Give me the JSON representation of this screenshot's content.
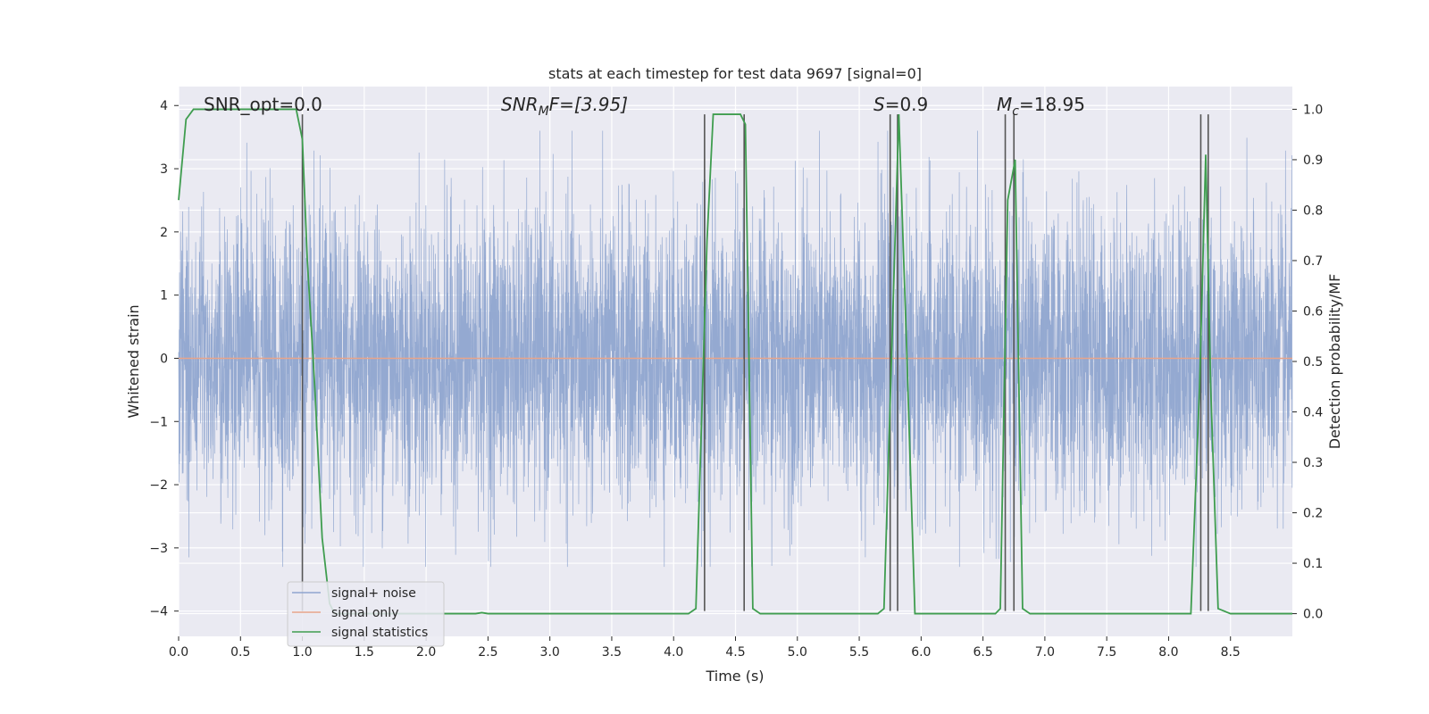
{
  "chart_data": {
    "type": "line",
    "title": "stats at each timestep for test data 9697 [signal=0]",
    "xlabel": "Time (s)",
    "ylabel_left": "Whitened strain",
    "ylabel_right": "Detection probability/MF",
    "xlim": [
      0,
      9.0
    ],
    "ylim_left": [
      -4.4,
      4.3
    ],
    "ylim_right": [
      -0.045,
      1.045
    ],
    "x_ticks": [
      "0.0",
      "0.5",
      "1.0",
      "1.5",
      "2.0",
      "2.5",
      "3.0",
      "3.5",
      "4.0",
      "4.5",
      "5.0",
      "5.5",
      "6.0",
      "6.5",
      "7.0",
      "7.5",
      "8.0",
      "8.5"
    ],
    "y_ticks_left": [
      "−4",
      "−3",
      "−2",
      "−1",
      "0",
      "1",
      "2",
      "3",
      "4"
    ],
    "y_ticks_right": [
      "0.0",
      "0.1",
      "0.2",
      "0.3",
      "0.4",
      "0.5",
      "0.6",
      "0.7",
      "0.8",
      "0.9",
      "1.0"
    ],
    "grid": true,
    "legend_placement": "lower-left",
    "annotations": {
      "snr_opt": "SNR_opt=0.0",
      "snr_mf_base": "SNR",
      "snr_mf_sub": "M",
      "snr_mf_rest": "F=[3.95]",
      "s_base": "S",
      "s_rest": "=0.9",
      "mc_base": "M",
      "mc_sub": "c",
      "mc_rest": "=18.95"
    },
    "series": [
      {
        "name": "signal+ noise",
        "color": "#8fa5cf",
        "description_range": [
          -3.3,
          3.6
        ],
        "sample_rate": 2048
      },
      {
        "name": "signal only",
        "color": "#e8a48a",
        "constant_value": 0
      },
      {
        "name": "signal statistics",
        "color": "#3f9d4f",
        "x": [
          0.0,
          0.06,
          0.12,
          0.2,
          0.5,
          0.8,
          0.95,
          1.0,
          1.04,
          1.1,
          1.16,
          1.22,
          1.26,
          2.4,
          2.45,
          2.5,
          4.12,
          4.18,
          4.27,
          4.32,
          4.48,
          4.54,
          4.58,
          4.64,
          4.7,
          5.65,
          5.7,
          5.82,
          5.88,
          5.95,
          6.6,
          6.64,
          6.7,
          6.76,
          6.82,
          6.88,
          8.18,
          8.25,
          8.3,
          8.34,
          8.4,
          8.5,
          9.0
        ],
        "y": [
          0.82,
          0.98,
          1.0,
          1.0,
          1.0,
          1.0,
          1.0,
          0.94,
          0.7,
          0.45,
          0.15,
          0.02,
          0.0,
          0.0,
          0.002,
          0.0,
          0.0,
          0.01,
          0.74,
          0.99,
          0.99,
          0.99,
          0.97,
          0.01,
          0.0,
          0.0,
          0.01,
          0.99,
          0.55,
          0.0,
          0.0,
          0.01,
          0.82,
          0.9,
          0.01,
          0.0,
          0.0,
          0.45,
          0.91,
          0.45,
          0.01,
          0.0,
          0.0
        ]
      }
    ],
    "vertical_markers": [
      {
        "x": 1.0,
        "y_top": 0.99,
        "y_bottom": -4.0
      },
      {
        "x": 4.25,
        "y_top": 0.99,
        "y_bottom": -4.0
      },
      {
        "x": 4.57,
        "y_top": 0.99,
        "y_bottom": -4.0
      },
      {
        "x": 5.75,
        "y_top": 0.99,
        "y_bottom": -4.0
      },
      {
        "x": 5.81,
        "y_top": 0.99,
        "y_bottom": -4.0
      },
      {
        "x": 6.68,
        "y_top": 0.99,
        "y_bottom": -4.0
      },
      {
        "x": 6.75,
        "y_top": 0.99,
        "y_bottom": -4.0
      },
      {
        "x": 8.26,
        "y_top": 0.99,
        "y_bottom": -4.0
      },
      {
        "x": 8.32,
        "y_top": 0.99,
        "y_bottom": -4.0
      }
    ],
    "colors": {
      "plot_bg": "#eaeaf2",
      "grid": "#ffffff",
      "marker": "#555555",
      "text": "#262626"
    }
  }
}
